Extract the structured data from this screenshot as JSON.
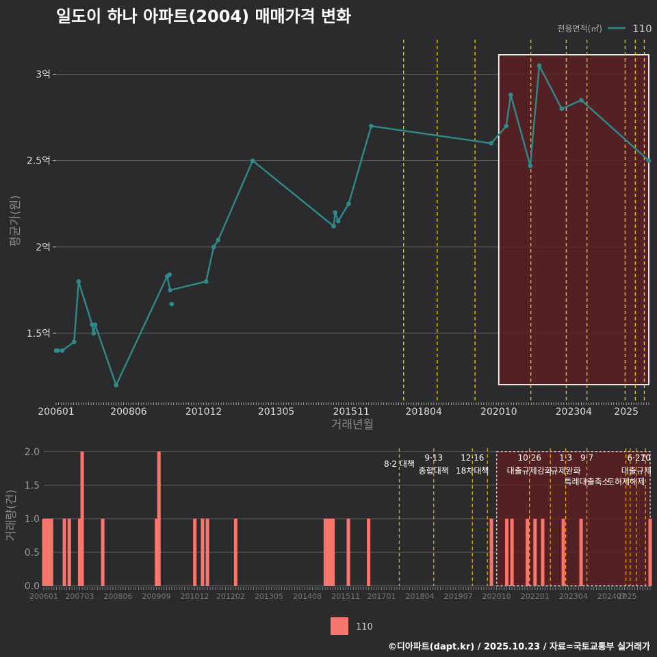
{
  "title": "일도이 하나 아파트(2004) 매매가격 변화",
  "footer": "©디아파트(dapt.kr) / 2025.10.23 / 자료=국토교통부 실거래가",
  "colors": {
    "line": "#2e8b8b",
    "bar": "#f8766d",
    "vline": "#e8d300",
    "vline_bottom": "#f0a500",
    "highlight": "#5a1f22",
    "background": "#2b2b2d",
    "grid": "#5e5e5e"
  },
  "chart_data": [
    {
      "type": "line",
      "title": "일도이 하나 아파트(2004) 매매가격 변화",
      "xlabel": "거래년월",
      "ylabel": "평균가(원)",
      "legend_title": "전용면적(㎡)",
      "legend_position": "top-right",
      "x_ticks": [
        "200601",
        "200806",
        "201012",
        "201305",
        "201511",
        "201804",
        "202010",
        "202304",
        "2025"
      ],
      "y_ticks": [
        1.5,
        2,
        2.5,
        3
      ],
      "y_tick_labels": [
        "1.5억",
        "2억",
        "2.5억",
        "3억"
      ],
      "ylim": [
        1.1,
        3.2
      ],
      "xlim": [
        2006.0,
        2025.75
      ],
      "highlight_range": [
        2020.75,
        2025.75
      ],
      "policy_lines": [
        2017.58,
        2018.7,
        2019.96,
        2021.82,
        2023.0,
        2023.69,
        2024.96,
        2025.3,
        2025.6
      ],
      "series": [
        {
          "name": "110",
          "x": [
            2006.05,
            2006.2,
            2006.6,
            2006.75,
            2007.2,
            2007.25,
            2007.3,
            2008.0,
            2009.7,
            2009.8,
            2011.0,
            2011.25,
            2011.4,
            2012.55,
            2015.25,
            2015.3,
            2015.4,
            2015.75,
            2016.5,
            2020.5,
            2021.0,
            2021.15,
            2021.8,
            2022.1,
            2022.85,
            2023.5,
            2025.75
          ],
          "values": [
            1.4,
            1.4,
            1.45,
            1.8,
            1.55,
            1.5,
            1.55,
            1.2,
            1.83,
            1.75,
            1.8,
            2.0,
            2.04,
            2.5,
            2.12,
            2.2,
            2.15,
            2.25,
            2.7,
            2.6,
            2.7,
            2.88,
            2.47,
            3.05,
            2.8,
            2.85,
            2.5
          ]
        }
      ],
      "extra_points": [
        {
          "x": 2009.85,
          "y": 1.67
        },
        {
          "x": 2009.78,
          "y": 1.84
        },
        {
          "x": 2006.0,
          "y": 1.4
        }
      ]
    },
    {
      "type": "bar",
      "ylabel": "거래량(건)",
      "legend": [
        "110"
      ],
      "x_ticks": [
        "200601",
        "200703",
        "200806",
        "200909",
        "201012",
        "201202",
        "201305",
        "201408",
        "201511",
        "201701",
        "201804",
        "201907",
        "202010",
        "202201",
        "202304",
        "202407",
        "2025"
      ],
      "y_ticks": [
        0.0,
        0.5,
        1.0,
        1.5,
        2.0
      ],
      "y_tick_labels": [
        "0.0",
        "0.5",
        "1.0",
        "1.5",
        "2.0"
      ],
      "ylim": [
        0,
        2.1
      ],
      "xlim": [
        2006.0,
        2025.75
      ],
      "highlight_range": [
        2020.75,
        2025.75
      ],
      "x": [
        2006.0,
        2006.08,
        2006.17,
        2006.25,
        2006.67,
        2006.83,
        2007.17,
        2007.25,
        2007.92,
        2009.67,
        2009.75,
        2010.92,
        2011.17,
        2011.33,
        2012.25,
        2015.17,
        2015.25,
        2015.33,
        2015.42,
        2015.92,
        2016.58,
        2020.58,
        2021.08,
        2021.25,
        2021.75,
        2022.0,
        2022.25,
        2022.92,
        2023.5,
        2025.75
      ],
      "values": [
        1,
        1,
        1,
        1,
        1,
        1,
        1,
        2,
        1,
        1,
        2,
        1,
        1,
        1,
        1,
        1,
        1,
        1,
        1,
        1,
        1,
        1,
        1,
        1,
        1,
        1,
        1,
        1,
        1,
        1
      ],
      "policy_lines": [
        2017.58,
        2018.7,
        2019.96,
        2020.45,
        2021.82,
        2022.5,
        2023.0,
        2023.69,
        2024.96,
        2025.1,
        2025.3,
        2025.6
      ],
      "annotations": [
        {
          "x": 2017.58,
          "date": "",
          "label": "8·2 대책",
          "row": 1
        },
        {
          "x": 2018.7,
          "date": "9·13",
          "label": "종합대책",
          "row": 2
        },
        {
          "x": 2019.96,
          "date": "12·16",
          "label": "18차대책",
          "row": 2
        },
        {
          "x": 2021.82,
          "date": "10·26",
          "label": "대출규제강화",
          "row": 2
        },
        {
          "x": 2023.0,
          "date": "1·3",
          "label": "규제완화",
          "row": 2
        },
        {
          "x": 2023.69,
          "date": "9·7",
          "label": "특례대출축소",
          "row": 3
        },
        {
          "x": 2024.96,
          "date": "",
          "label": "토허제해제",
          "row": 3
        },
        {
          "x": 2025.3,
          "date": "6·27",
          "label": "대출규제",
          "row": 2
        },
        {
          "x": 2025.6,
          "date": "10",
          "label": "",
          "row": 1
        }
      ]
    }
  ]
}
